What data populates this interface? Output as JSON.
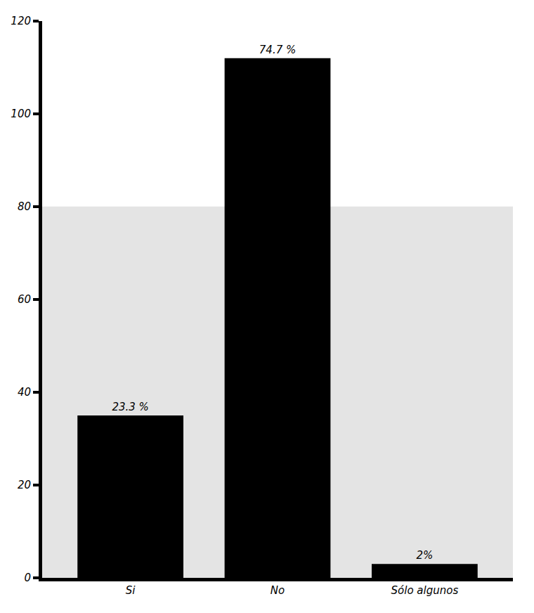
{
  "chart_data": {
    "type": "bar",
    "categories": [
      "Si",
      "No",
      "Sólo algunos"
    ],
    "values": [
      35,
      112,
      3
    ],
    "annotations": [
      "23.3 %",
      "74.7 %",
      "2%"
    ],
    "color": "#000000",
    "ylim": [
      0,
      120
    ],
    "yticks": [
      0,
      20,
      40,
      60,
      80,
      100,
      120
    ],
    "grid": false
  }
}
